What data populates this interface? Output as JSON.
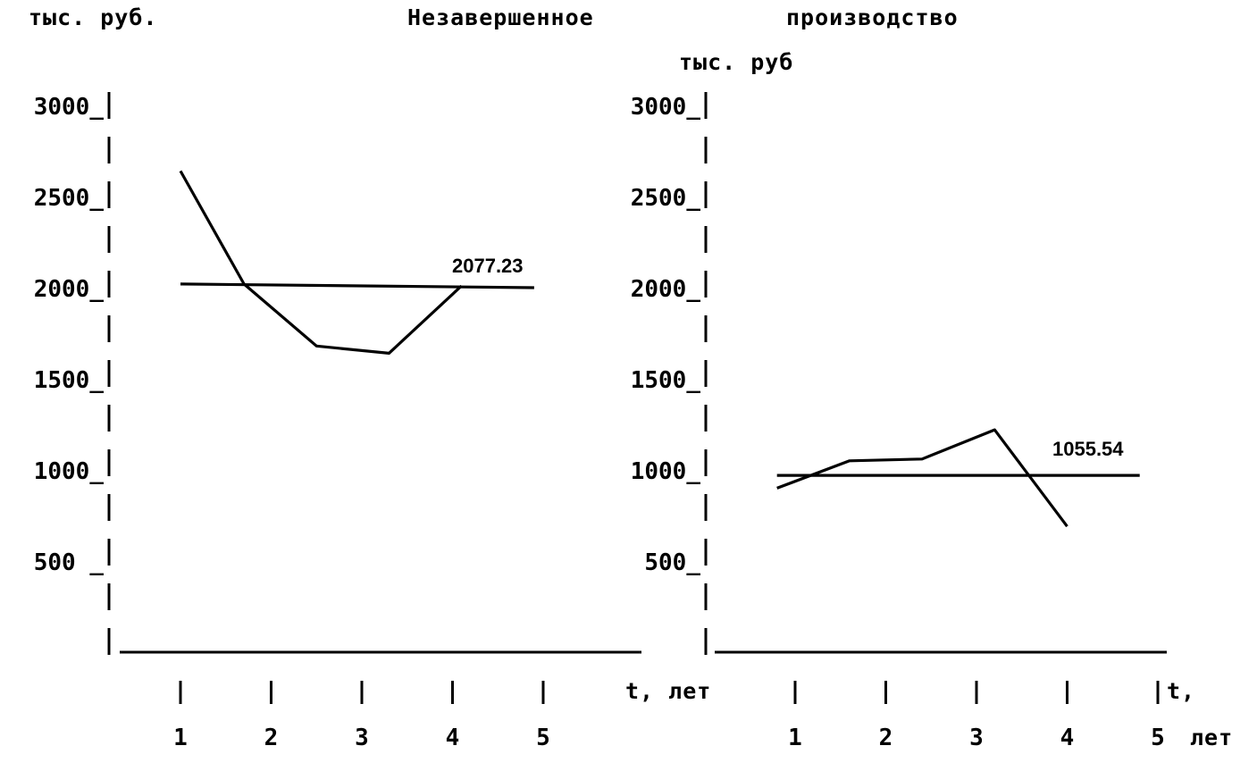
{
  "title_left": "Незавершенное",
  "title_right": "производство",
  "chart_data": [
    {
      "type": "line",
      "ylabel": "тыс. руб.",
      "xlabel": "t, лет",
      "ylim": [
        0,
        3000
      ],
      "yticks": [
        "3000_",
        "2500_",
        "2000_",
        "1500_",
        "1000_",
        "500 _"
      ],
      "x_ticks": [
        "1",
        "2",
        "3",
        "4",
        "5"
      ],
      "series": [
        {
          "x": [
            1,
            1.7,
            2.5,
            3.3,
            4.1
          ],
          "values": [
            2640,
            2020,
            1680,
            1640,
            2010
          ]
        },
        {
          "x": [
            1,
            4.9
          ],
          "values": [
            2020,
            2000
          ]
        }
      ],
      "annotation": "2077.23",
      "grid": false
    },
    {
      "type": "line",
      "ylabel": "тыс. руб",
      "xlabel_top": "t,",
      "xlabel_bottom": "лет",
      "ylim": [
        0,
        3000
      ],
      "yticks": [
        "3000_",
        "2500_",
        "2000_",
        "1500_",
        "1000_",
        "500_"
      ],
      "x_ticks": [
        "1",
        "2",
        "3",
        "4",
        "5"
      ],
      "series": [
        {
          "x": [
            0.8,
            1.6,
            2.4,
            3.2,
            4.0
          ],
          "values": [
            900,
            1050,
            1060,
            1220,
            690
          ]
        },
        {
          "x": [
            0.8,
            4.8
          ],
          "values": [
            970,
            970
          ]
        }
      ],
      "annotation": "1055.54",
      "grid": false
    }
  ]
}
